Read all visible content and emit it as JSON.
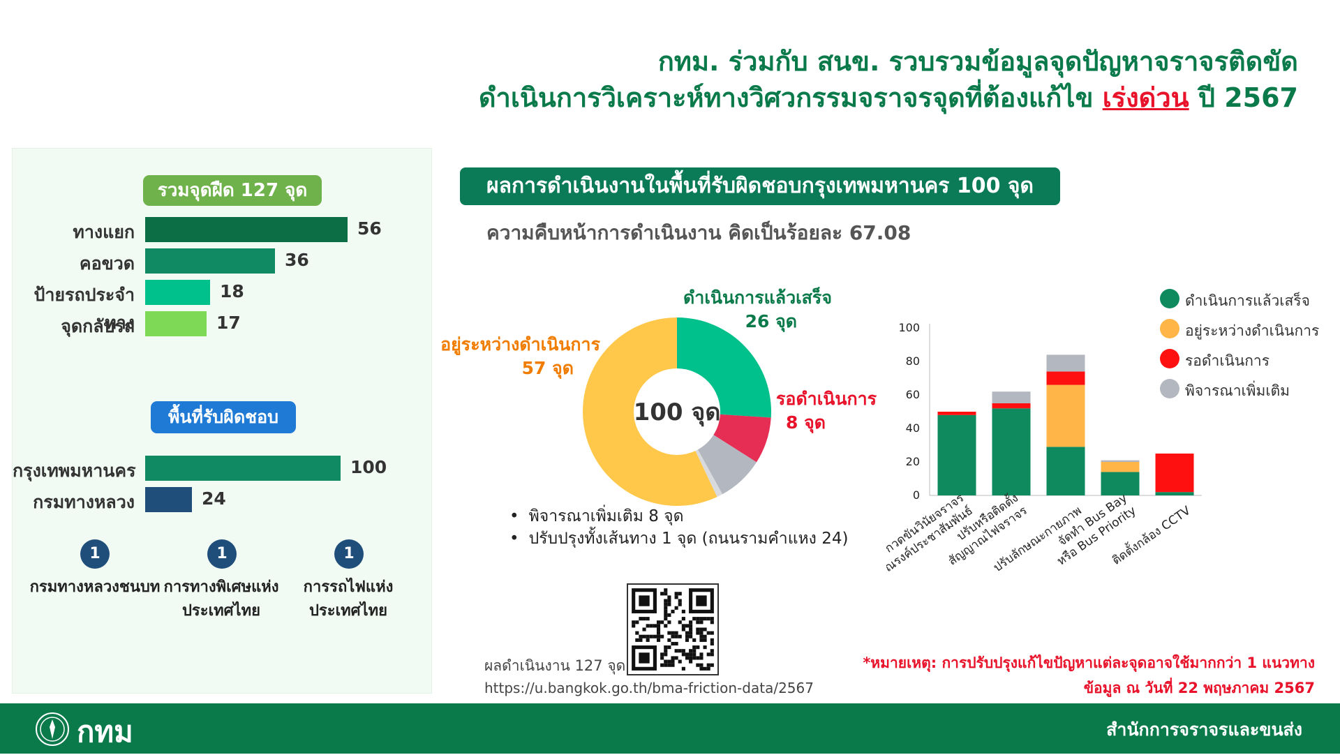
{
  "header": {
    "line1": "กทม. ร่วมกับ สนข. รวบรวมข้อมูลจุดปัญหาจราจรติดขัด",
    "line2_prefix": "ดำเนินการวิเคราะห์ทางวิศวกรรมจราจรจุดที่ต้องแก้ไข ",
    "line2_urgent": "เร่งด่วน",
    "line2_suffix": " ปี 2567"
  },
  "left": {
    "total_pill": "รวมจุดฝืด 127 จุด",
    "area_pill": "พื้นที่รับผิดชอบ",
    "agencies": [
      {
        "count": "1",
        "label": "กรมทางหลวงชนบท"
      },
      {
        "count": "1",
        "label": "การทางพิเศษแห่งประเทศไทย"
      },
      {
        "count": "1",
        "label": "การรถไฟแห่งประเทศไทย"
      }
    ]
  },
  "right": {
    "title": "ผลการดำเนินงานในพื้นที่รับผิดชอบกรุงเทพมหานคร 100 จุด",
    "progress": "ความคืบหน้าการดำเนินงาน คิดเป็นร้อยละ 67.08",
    "bullets": [
      "พิจารณาเพิ่มเติม 8 จุด",
      "ปรับปรุงทั้งเส้นทาง 1 จุด (ถนนรามคำแหง 24)"
    ],
    "qr_caption": "ผลดำเนินงาน 127 จุด",
    "qr_url": "https://u.bangkok.go.th/bma-friction-data/2567"
  },
  "note": {
    "line1": "*หมายเหตุ:  การปรับปรุงแก้ไขปัญหาแต่ละจุดอาจใช้มากกว่า 1 แนวทาง",
    "line2": "ข้อมูล  ณ วันที่ 22 พฤษภาคม 2567"
  },
  "footer": {
    "logo_text": "กทม",
    "org": "สำนักการจราจรและขนส่ง"
  },
  "colors": {
    "green_dark": "#0b7a4b",
    "done": "#0f8a5f",
    "in_progress": "#ffb547",
    "waiting": "#ff1010",
    "consider": "#b3b7bf"
  },
  "chart_data": [
    {
      "type": "bar",
      "orientation": "horizontal",
      "categories": [
        "ทางแยก",
        "คอขวด",
        "ป้ายรถประจำทาง",
        "จุดกลับรถ"
      ],
      "values": [
        56,
        36,
        18,
        17
      ],
      "colors": [
        "#0b6e45",
        "#0f8a62",
        "#00c08b",
        "#7ed957"
      ]
    },
    {
      "type": "bar",
      "orientation": "horizontal",
      "categories": [
        "กรุงเทพมหานคร",
        "กรมทางหลวง"
      ],
      "values": [
        100,
        24
      ],
      "colors": [
        "#0f8a62",
        "#1e4e79"
      ]
    },
    {
      "type": "pie",
      "center_label": "100 จุด",
      "slices": [
        {
          "name": "ดำเนินการแล้วเสร็จ",
          "value": 26,
          "label": "26 จุด",
          "color": "#00c08b"
        },
        {
          "name": "รอดำเนินการ",
          "value": 8,
          "label": "8 จุด",
          "color": "#e62e55"
        },
        {
          "name": "พิจารณาเพิ่มเติม",
          "value": 8,
          "label": "",
          "color": "#b3b7bf"
        },
        {
          "name": "ปรับปรุงทั้งเส้นทาง",
          "value": 1,
          "label": "",
          "color": "#d8dade"
        },
        {
          "name": "อยู่ระหว่างดำเนินการ",
          "value": 57,
          "label": "57 จุด",
          "color": "#ffc84a"
        }
      ]
    },
    {
      "type": "bar",
      "stacked": true,
      "categories": [
        "กวดขันวินัยจราจร\nรณรงค์ประชาสัมพันธ์",
        "ปรับหรือติดตั้ง\nสัญญาณไฟจราจร",
        "ปรับลักษณะกายภาพ",
        "จัดทำ Bus Bay\nหรือ Bus Priority",
        "ติดตั้งกล้อง CCTV"
      ],
      "series": [
        {
          "name": "ดำเนินการแล้วเสร็จ",
          "values": [
            48,
            52,
            29,
            14,
            2
          ],
          "color": "#0f8a5f"
        },
        {
          "name": "อยู่ระหว่างดำเนินการ",
          "values": [
            0,
            0,
            37,
            6,
            0
          ],
          "color": "#ffb547"
        },
        {
          "name": "รอดำเนินการ",
          "values": [
            2,
            3,
            8,
            0,
            23
          ],
          "color": "#ff1010"
        },
        {
          "name": "พิจารณาเพิ่มเติม",
          "values": [
            0,
            7,
            10,
            1,
            0
          ],
          "color": "#b3b7bf"
        }
      ],
      "ylim": [
        0,
        100
      ],
      "yticks": [
        0,
        20,
        40,
        60,
        80,
        100
      ],
      "legend": "top-right"
    }
  ]
}
